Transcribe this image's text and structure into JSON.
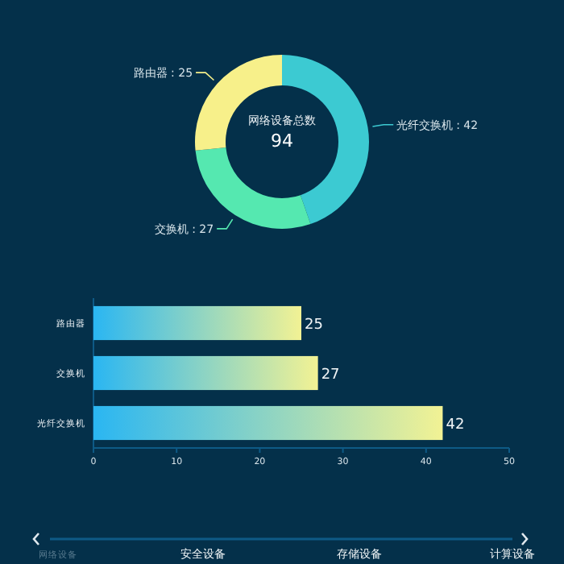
{
  "chart_data": [
    {
      "type": "donut",
      "title": "网络设备总数",
      "annotations": [
        "94"
      ],
      "categories": [
        "光纤交换机",
        "交换机",
        "路由器"
      ],
      "values": [
        42,
        27,
        25
      ],
      "colors": [
        "#3ccad2",
        "#55e8b0",
        "#f7f08a"
      ],
      "value_labels": [
        ": 42",
        ": 27",
        ": 25"
      ]
    },
    {
      "type": "bar",
      "orientation": "horizontal",
      "categories": [
        "路由器",
        "交换机",
        "光纤交换机"
      ],
      "values": [
        25,
        27,
        42
      ],
      "color": "#2ab6f2",
      "xlim": [
        0,
        50
      ],
      "xticks": [
        0,
        10,
        20,
        30,
        40,
        50
      ],
      "data_labels": true,
      "annotations": [
        "网络设备",
        "安全设备",
        "存储设备",
        "计算设备"
      ]
    }
  ]
}
